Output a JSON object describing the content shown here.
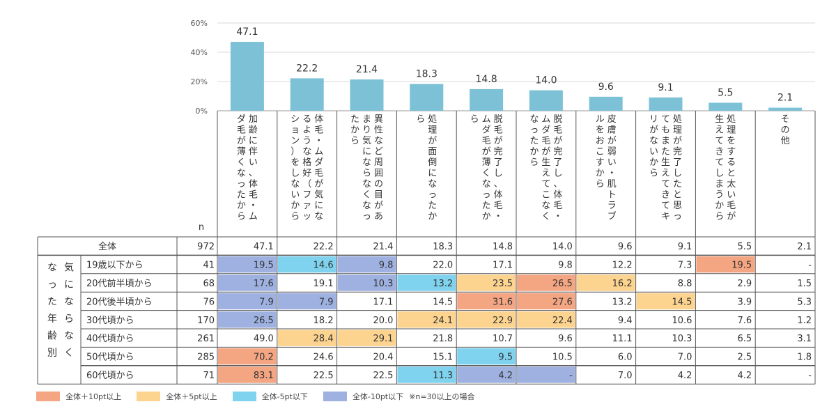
{
  "chart_data": {
    "type": "bar",
    "title": "",
    "ylim": [
      0,
      60
    ],
    "yticks": [
      "0%",
      "20%",
      "40%",
      "60%"
    ],
    "categories": [
      "加齢に伴い、体毛・ムダ毛が薄くなったから",
      "体毛・ムダ毛が気になるような格好（ファッション）をしないから",
      "異性など周囲の目があまり気にならなくなったから",
      "処理が面倒になったから",
      "脱毛が完了し、体毛・ムダ毛が薄くなったから",
      "脱毛が完了し、体毛・ムダ毛が生えてこなくなったから",
      "皮膚が弱い・肌トラブルをおこすから",
      "処理が完了したと思ってもまた生えてきてキリがないから",
      "処理をすると太い毛が生えてきてしまうから",
      "その他"
    ],
    "values": [
      47.1,
      22.2,
      21.4,
      18.3,
      14.8,
      14.0,
      9.6,
      9.1,
      5.5,
      2.1
    ],
    "value_labels": [
      "47.1",
      "22.2",
      "21.4",
      "18.3",
      "14.8",
      "14.0",
      "9.6",
      "9.1",
      "5.5",
      "2.1"
    ],
    "bar_color": "#7dc1d6",
    "table": {
      "n_header": "n",
      "total": {
        "label": "全体",
        "n": "972",
        "values": [
          "47.1",
          "22.2",
          "21.4",
          "18.3",
          "14.8",
          "14.0",
          "9.6",
          "9.1",
          "5.5",
          "2.1"
        ]
      },
      "group_label": "気にならなくなった年齢別",
      "rows": [
        {
          "label": "19歳以下から",
          "n": "41",
          "values": [
            "19.5",
            "14.6",
            "9.8",
            "22.0",
            "17.1",
            "9.8",
            "12.2",
            "7.3",
            "19.5",
            "-"
          ],
          "highlight": [
            "blue",
            "lightblue",
            "blue",
            "",
            "",
            "",
            "",
            "",
            "orange",
            ""
          ]
        },
        {
          "label": "20代前半頃から",
          "n": "68",
          "values": [
            "17.6",
            "19.1",
            "10.3",
            "13.2",
            "23.5",
            "26.5",
            "16.2",
            "8.8",
            "2.9",
            "1.5"
          ],
          "highlight": [
            "blue",
            "",
            "blue",
            "lightblue",
            "yellow",
            "orange",
            "yellow",
            "",
            "",
            ""
          ]
        },
        {
          "label": "20代後半頃から",
          "n": "76",
          "values": [
            "7.9",
            "7.9",
            "17.1",
            "14.5",
            "31.6",
            "27.6",
            "13.2",
            "14.5",
            "3.9",
            "5.3"
          ],
          "highlight": [
            "blue",
            "blue",
            "",
            "",
            "orange",
            "orange",
            "",
            "yellow",
            "",
            ""
          ]
        },
        {
          "label": "30代頃から",
          "n": "170",
          "values": [
            "26.5",
            "18.2",
            "20.0",
            "24.1",
            "22.9",
            "22.4",
            "9.4",
            "10.6",
            "7.6",
            "1.2"
          ],
          "highlight": [
            "blue",
            "",
            "",
            "yellow",
            "yellow",
            "yellow",
            "",
            "",
            "",
            ""
          ]
        },
        {
          "label": "40代頃から",
          "n": "261",
          "values": [
            "49.0",
            "28.4",
            "29.1",
            "21.8",
            "10.7",
            "9.6",
            "11.1",
            "10.3",
            "6.5",
            "3.1"
          ],
          "highlight": [
            "",
            "yellow",
            "yellow",
            "",
            "",
            "",
            "",
            "",
            "",
            ""
          ]
        },
        {
          "label": "50代頃から",
          "n": "285",
          "values": [
            "70.2",
            "24.6",
            "20.4",
            "15.1",
            "9.5",
            "10.5",
            "6.0",
            "7.0",
            "2.5",
            "1.8"
          ],
          "highlight": [
            "orange",
            "",
            "",
            "",
            "lightblue",
            "",
            "",
            "",
            "",
            ""
          ]
        },
        {
          "label": "60代頃から",
          "n": "71",
          "values": [
            "83.1",
            "22.5",
            "22.5",
            "11.3",
            "4.2",
            "-",
            "7.0",
            "4.2",
            "4.2",
            "-"
          ],
          "highlight": [
            "orange",
            "",
            "",
            "lightblue",
            "blue",
            "blue",
            "",
            "",
            "",
            ""
          ]
        }
      ]
    },
    "highlight_colors": {
      "orange": "#f4a582",
      "yellow": "#fcd48f",
      "lightblue": "#7fd3ef",
      "blue": "#9eb1e0"
    },
    "legend": [
      {
        "label": "全体＋10pt以上",
        "color": "#f4a582"
      },
      {
        "label": "全体＋5pt以上",
        "color": "#fcd48f"
      },
      {
        "label": "全体-5pt以下",
        "color": "#7fd3ef"
      },
      {
        "label": "全体-10pt以下",
        "color": "#9eb1e0"
      }
    ],
    "note": "※n=30以上の場合"
  }
}
